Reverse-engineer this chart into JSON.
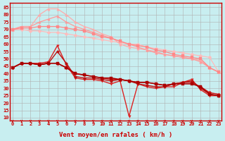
{
  "bg_color": "#c8eef0",
  "grid_color": "#b0b0b0",
  "x_labels": [
    "0",
    "1",
    "2",
    "3",
    "4",
    "5",
    "6",
    "7",
    "8",
    "9",
    "10",
    "11",
    "12",
    "13",
    "14",
    "15",
    "16",
    "17",
    "18",
    "19",
    "20",
    "21",
    "22",
    "23"
  ],
  "x_values": [
    0,
    1,
    2,
    3,
    4,
    5,
    6,
    7,
    8,
    9,
    10,
    11,
    12,
    13,
    14,
    15,
    16,
    17,
    18,
    19,
    20,
    21,
    22,
    23
  ],
  "yticks": [
    10,
    15,
    20,
    25,
    30,
    35,
    40,
    45,
    50,
    55,
    60,
    65,
    70,
    75,
    80,
    85
  ],
  "ylim": [
    8,
    88
  ],
  "xlim": [
    -0.3,
    23.3
  ],
  "xlabel": "Vent moyen/en rafales ( km/h )",
  "series": [
    {
      "color": "#ffbbbb",
      "linewidth": 0.9,
      "marker": "D",
      "markersize": 2.5,
      "data": [
        70,
        70,
        69,
        69,
        68,
        68,
        67,
        66,
        65,
        64,
        63,
        62,
        61,
        60,
        60,
        58,
        57,
        56,
        55,
        54,
        53,
        52,
        51,
        41
      ]
    },
    {
      "color": "#ffaaaa",
      "linewidth": 0.9,
      "marker": "^",
      "markersize": 2.5,
      "data": [
        70,
        72,
        72,
        80,
        84,
        84,
        80,
        75,
        72,
        70,
        67,
        65,
        60,
        58,
        57,
        56,
        55,
        53,
        52,
        51,
        50,
        49,
        44,
        41
      ]
    },
    {
      "color": "#ff9999",
      "linewidth": 0.9,
      "marker": "^",
      "markersize": 2.5,
      "data": [
        70,
        72,
        72,
        75,
        77,
        79,
        75,
        72,
        70,
        68,
        66,
        64,
        62,
        60,
        58,
        56,
        54,
        53,
        52,
        51,
        50,
        48,
        44,
        41
      ]
    },
    {
      "color": "#ff8888",
      "linewidth": 0.9,
      "marker": "s",
      "markersize": 2.5,
      "data": [
        70,
        71,
        71,
        72,
        72,
        72,
        71,
        70,
        69,
        67,
        65,
        64,
        62,
        60,
        59,
        58,
        56,
        55,
        53,
        52,
        51,
        50,
        44,
        41
      ]
    },
    {
      "color": "#dd2222",
      "linewidth": 1.0,
      "marker": "v",
      "markersize": 2.5,
      "data": [
        44,
        47,
        47,
        47,
        48,
        59,
        46,
        37,
        36,
        36,
        35,
        33,
        35,
        11,
        33,
        31,
        30,
        31,
        31,
        34,
        36,
        29,
        25,
        25
      ]
    },
    {
      "color": "#cc1111",
      "linewidth": 1.0,
      "marker": "D",
      "markersize": 2.5,
      "data": [
        44,
        47,
        47,
        46,
        47,
        47,
        44,
        40,
        39,
        38,
        37,
        36,
        36,
        35,
        34,
        34,
        33,
        32,
        33,
        34,
        34,
        31,
        27,
        26
      ]
    },
    {
      "color": "#bb1111",
      "linewidth": 1.0,
      "marker": "o",
      "markersize": 2.5,
      "data": [
        44,
        47,
        47,
        46,
        47,
        55,
        47,
        38,
        37,
        37,
        36,
        35,
        36,
        35,
        33,
        32,
        31,
        31,
        33,
        34,
        35,
        30,
        26,
        25
      ]
    },
    {
      "color": "#aa0000",
      "linewidth": 1.1,
      "marker": "s",
      "markersize": 2.5,
      "data": [
        44,
        47,
        47,
        46,
        47,
        47,
        44,
        40,
        39,
        38,
        37,
        37,
        36,
        35,
        34,
        34,
        33,
        32,
        33,
        33,
        33,
        31,
        26,
        25
      ]
    }
  ],
  "arrow_color": "#cc0000",
  "tick_fontsize": 5.0,
  "xlabel_fontsize": 6.5
}
